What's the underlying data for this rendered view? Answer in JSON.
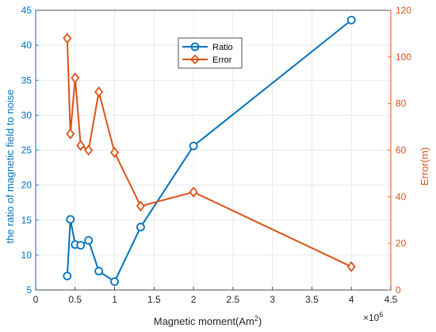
{
  "chart_data": {
    "type": "line",
    "x_unit_multiplier_label": "×10",
    "x_unit_multiplier_exponent": "6",
    "xlabel": "Magnetic moment(Am",
    "xlabel_superscript": "2",
    "xlabel_suffix": ")",
    "ylabel_left": "the ratio of magnetic field to noise",
    "ylabel_right": "Error(m)",
    "xlim": [
      0,
      4.5
    ],
    "ylim_left": [
      5,
      45
    ],
    "ylim_right": [
      0,
      120
    ],
    "x_ticks": [
      "0",
      "0.5",
      "1",
      "1.5",
      "2",
      "2.5",
      "3",
      "3.5",
      "4",
      "4.5"
    ],
    "y_left_ticks": [
      "5",
      "10",
      "15",
      "20",
      "25",
      "30",
      "35",
      "40",
      "45"
    ],
    "y_right_ticks": [
      "0",
      "20",
      "40",
      "60",
      "80",
      "100",
      "120"
    ],
    "grid": true,
    "legend_position": "top-center",
    "series": [
      {
        "name": "Ratio",
        "axis": "left",
        "marker": "circle",
        "color": "#0072BD",
        "x": [
          0.4,
          0.44,
          0.5,
          0.57,
          0.67,
          0.8,
          1.0,
          1.33,
          2.0,
          4.0
        ],
        "y": [
          7.0,
          15.1,
          11.5,
          11.4,
          12.1,
          7.7,
          6.2,
          14.0,
          25.6,
          43.6
        ]
      },
      {
        "name": "Error",
        "axis": "right",
        "marker": "diamond",
        "color": "#D95319",
        "x": [
          0.4,
          0.44,
          0.5,
          0.57,
          0.67,
          0.8,
          1.0,
          1.33,
          2.0,
          4.0
        ],
        "y": [
          108,
          67,
          91,
          62,
          60,
          85,
          59,
          36,
          42,
          10
        ]
      }
    ]
  }
}
